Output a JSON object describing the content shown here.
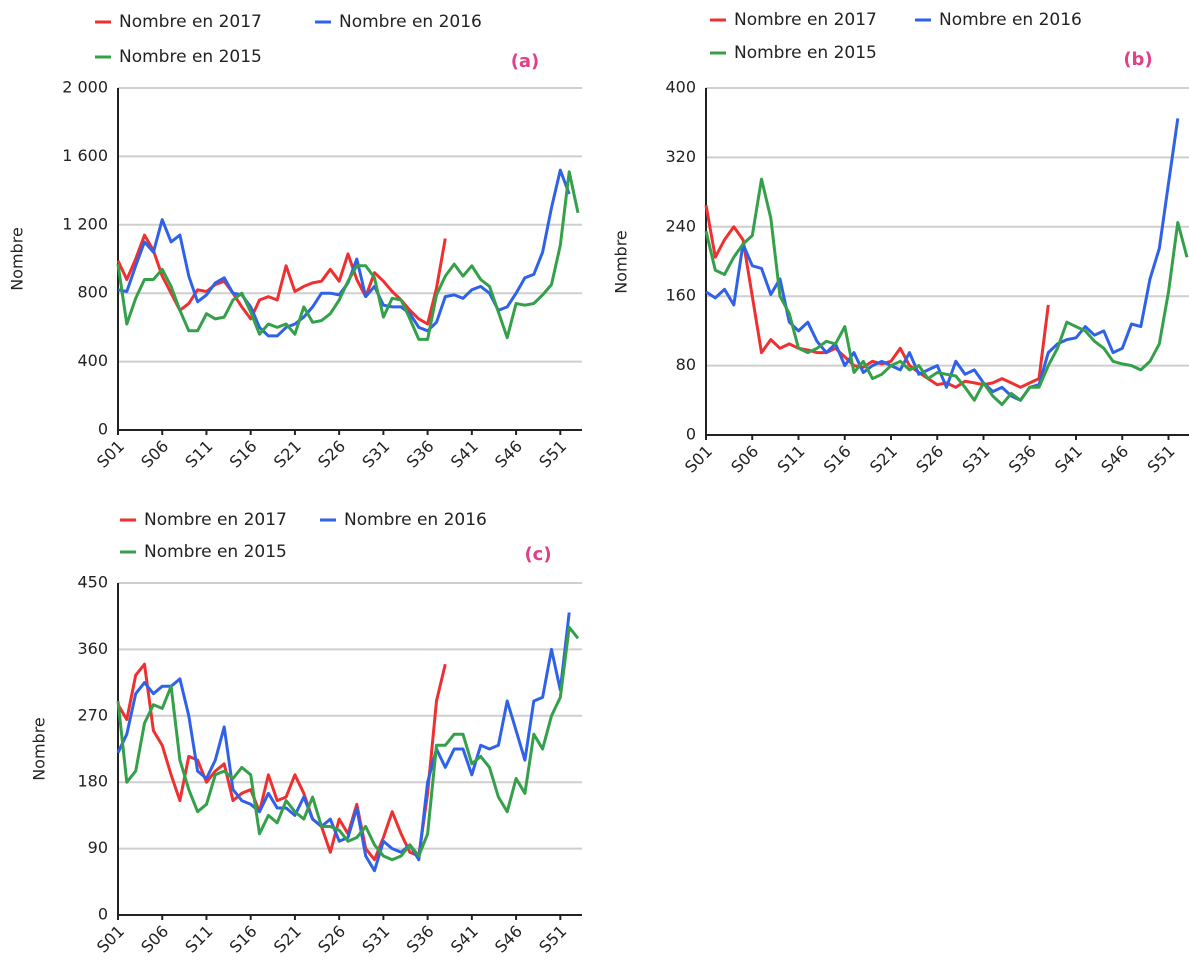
{
  "chart_data": [
    {
      "type": "line",
      "panel_label": "(a)",
      "y_label": "Nombre",
      "categories": [
        "S01",
        null,
        null,
        null,
        null,
        "S06",
        null,
        null,
        null,
        null,
        "S11",
        null,
        null,
        null,
        null,
        "S16",
        null,
        null,
        null,
        null,
        "S21",
        null,
        null,
        null,
        null,
        "S26",
        null,
        null,
        null,
        null,
        "S31",
        null,
        null,
        null,
        null,
        "S36",
        null,
        null,
        null,
        null,
        "S41",
        null,
        null,
        null,
        null,
        "S46",
        null,
        null,
        null,
        null,
        "S51",
        null,
        null
      ],
      "ylim": [
        0,
        2000
      ],
      "yticks": [
        0,
        400,
        800,
        {
          "value": 1200,
          "label": "1 200"
        },
        {
          "value": 1600,
          "label": "1 600"
        },
        {
          "value": 2000,
          "label": "2 000"
        }
      ],
      "grid": true,
      "series": [
        {
          "name": "Nombre en 2017",
          "color": "#f03030",
          "values": [
            990,
            880,
            1000,
            1140,
            1050,
            900,
            800,
            700,
            740,
            820,
            810,
            850,
            870,
            800,
            720,
            650,
            760,
            780,
            760,
            960,
            810,
            840,
            860,
            870,
            940,
            870,
            1030,
            880,
            780,
            920,
            870,
            810,
            760,
            700,
            650,
            620,
            830,
            1120,
            null,
            null,
            null,
            null,
            null,
            null,
            null,
            null,
            null,
            null,
            null,
            null,
            null,
            null,
            null
          ]
        },
        {
          "name": "Nombre en 2016",
          "color": "#2f62e8",
          "values": [
            820,
            810,
            960,
            1100,
            1040,
            1230,
            1100,
            1140,
            900,
            750,
            790,
            860,
            890,
            800,
            790,
            720,
            600,
            550,
            550,
            600,
            620,
            660,
            720,
            800,
            800,
            790,
            860,
            1000,
            780,
            840,
            730,
            720,
            720,
            680,
            600,
            580,
            630,
            780,
            790,
            770,
            820,
            840,
            800,
            700,
            720,
            800,
            890,
            910,
            1040,
            1300,
            1520,
            1380,
            null
          ]
        },
        {
          "name": "Nombre en 2015",
          "color": "#35a04a",
          "values": [
            970,
            620,
            770,
            880,
            880,
            940,
            840,
            700,
            580,
            580,
            680,
            650,
            660,
            760,
            800,
            690,
            560,
            620,
            600,
            620,
            560,
            720,
            630,
            640,
            680,
            760,
            870,
            960,
            960,
            890,
            660,
            770,
            760,
            650,
            530,
            530,
            790,
            900,
            970,
            900,
            960,
            880,
            840,
            690,
            540,
            740,
            730,
            740,
            790,
            850,
            1080,
            1510,
            1270
          ]
        }
      ]
    },
    {
      "type": "line",
      "panel_label": "(b)",
      "y_label": "Nombre",
      "categories": [
        "S01",
        null,
        null,
        null,
        null,
        "S06",
        null,
        null,
        null,
        null,
        "S11",
        null,
        null,
        null,
        null,
        "S16",
        null,
        null,
        null,
        null,
        "S21",
        null,
        null,
        null,
        null,
        "S26",
        null,
        null,
        null,
        null,
        "S31",
        null,
        null,
        null,
        null,
        "S36",
        null,
        null,
        null,
        null,
        "S41",
        null,
        null,
        null,
        null,
        "S46",
        null,
        null,
        null,
        null,
        "S51",
        null,
        null
      ],
      "ylim": [
        0,
        400
      ],
      "yticks": [
        0,
        80,
        160,
        240,
        320,
        400
      ],
      "grid": true,
      "series": [
        {
          "name": "Nombre en 2017",
          "color": "#f03030",
          "values": [
            265,
            205,
            225,
            240,
            225,
            160,
            95,
            110,
            100,
            105,
            100,
            98,
            95,
            95,
            100,
            90,
            80,
            78,
            85,
            82,
            85,
            100,
            80,
            72,
            65,
            58,
            60,
            55,
            62,
            60,
            58,
            60,
            65,
            60,
            55,
            60,
            65,
            150,
            null,
            null,
            null,
            null,
            null,
            null,
            null,
            null,
            null,
            null,
            null,
            null,
            null,
            null,
            null
          ]
        },
        {
          "name": "Nombre en 2016",
          "color": "#2f62e8",
          "values": [
            165,
            158,
            168,
            150,
            220,
            195,
            192,
            162,
            180,
            130,
            120,
            130,
            108,
            95,
            105,
            80,
            95,
            72,
            80,
            85,
            80,
            75,
            95,
            70,
            75,
            80,
            55,
            85,
            70,
            75,
            60,
            50,
            55,
            45,
            40,
            55,
            58,
            95,
            105,
            110,
            112,
            125,
            115,
            120,
            95,
            100,
            128,
            125,
            180,
            215,
            290,
            365,
            null
          ]
        },
        {
          "name": "Nombre en 2015",
          "color": "#35a04a",
          "values": [
            235,
            190,
            185,
            205,
            220,
            230,
            295,
            250,
            160,
            140,
            100,
            95,
            100,
            108,
            105,
            125,
            72,
            85,
            65,
            70,
            80,
            85,
            75,
            80,
            65,
            72,
            70,
            68,
            55,
            40,
            60,
            45,
            35,
            48,
            40,
            55,
            55,
            80,
            100,
            130,
            125,
            120,
            108,
            100,
            85,
            82,
            80,
            75,
            85,
            105,
            165,
            245,
            205
          ]
        }
      ]
    },
    {
      "type": "line",
      "panel_label": "(c)",
      "y_label": "Nombre",
      "categories": [
        "S01",
        null,
        null,
        null,
        null,
        "S06",
        null,
        null,
        null,
        null,
        "S11",
        null,
        null,
        null,
        null,
        "S16",
        null,
        null,
        null,
        null,
        "S21",
        null,
        null,
        null,
        null,
        "S26",
        null,
        null,
        null,
        null,
        "S31",
        null,
        null,
        null,
        null,
        "S36",
        null,
        null,
        null,
        null,
        "S41",
        null,
        null,
        null,
        null,
        "S46",
        null,
        null,
        null,
        null,
        "S51",
        null,
        null
      ],
      "ylim": [
        0,
        450
      ],
      "yticks": [
        0,
        90,
        180,
        270,
        360,
        450
      ],
      "grid": true,
      "series": [
        {
          "name": "Nombre en 2017",
          "color": "#f03030",
          "values": [
            285,
            265,
            325,
            340,
            250,
            230,
            190,
            155,
            215,
            210,
            180,
            195,
            205,
            155,
            165,
            170,
            140,
            190,
            155,
            160,
            190,
            165,
            130,
            120,
            85,
            130,
            110,
            150,
            90,
            75,
            105,
            140,
            110,
            85,
            80,
            165,
            290,
            340,
            null,
            null,
            null,
            null,
            null,
            null,
            null,
            null,
            null,
            null,
            null,
            null,
            null,
            null,
            null
          ]
        },
        {
          "name": "Nombre en 2016",
          "color": "#2f62e8",
          "values": [
            220,
            245,
            300,
            315,
            300,
            310,
            310,
            320,
            270,
            195,
            185,
            210,
            255,
            170,
            155,
            150,
            140,
            165,
            145,
            145,
            135,
            160,
            130,
            120,
            130,
            100,
            105,
            145,
            80,
            60,
            100,
            90,
            85,
            95,
            75,
            180,
            225,
            200,
            225,
            225,
            190,
            230,
            225,
            230,
            290,
            250,
            210,
            290,
            295,
            360,
            305,
            410,
            null
          ]
        },
        {
          "name": "Nombre en 2015",
          "color": "#35a04a",
          "values": [
            290,
            180,
            195,
            260,
            285,
            280,
            310,
            210,
            170,
            140,
            150,
            190,
            195,
            185,
            200,
            190,
            110,
            135,
            125,
            155,
            140,
            130,
            160,
            120,
            120,
            115,
            100,
            105,
            120,
            95,
            80,
            75,
            80,
            95,
            80,
            110,
            230,
            230,
            245,
            245,
            205,
            215,
            200,
            160,
            140,
            185,
            165,
            245,
            225,
            270,
            295,
            390,
            375
          ]
        }
      ]
    }
  ]
}
